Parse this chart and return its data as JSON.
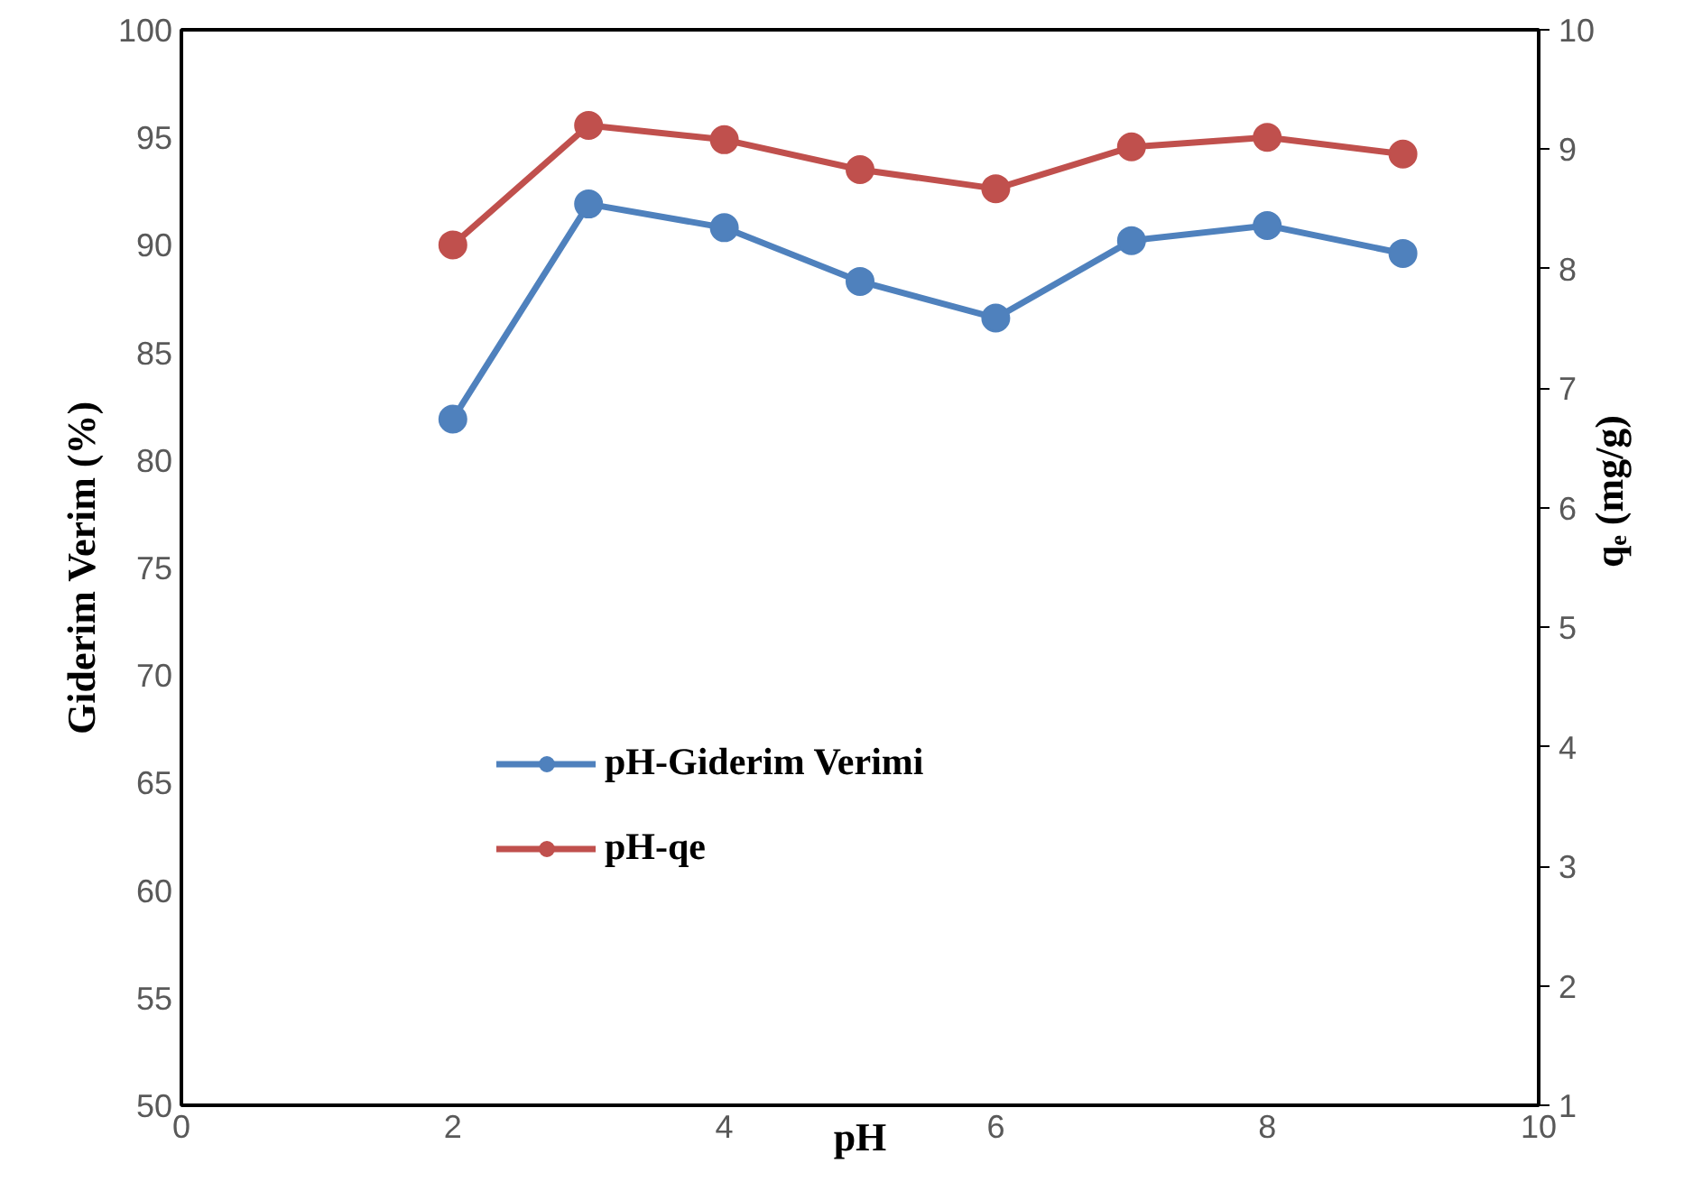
{
  "chart_data": {
    "type": "line",
    "xlabel": "pH",
    "ylabel": "Giderim Verim (%)",
    "y2label": "qₑ (mg/g)",
    "x": [
      2,
      3,
      4,
      5,
      6,
      7,
      8,
      9
    ],
    "series": [
      {
        "name": "pH-Giderim Verimi",
        "color": "#4f81bd",
        "values": [
          81.9,
          91.9,
          90.8,
          88.3,
          86.6,
          90.2,
          90.9,
          89.6
        ]
      },
      {
        "name": "pH-qe",
        "color": "#c0504d",
        "axis": "y2",
        "values": [
          8.2,
          9.2,
          9.08,
          8.83,
          8.67,
          9.02,
          9.1,
          8.96
        ]
      }
    ],
    "xlim": [
      0,
      10
    ],
    "xticks": [
      0,
      2,
      4,
      6,
      8,
      10
    ],
    "ylim": [
      50,
      100
    ],
    "yticks": [
      50,
      55,
      60,
      65,
      70,
      75,
      80,
      85,
      90,
      95,
      100
    ],
    "y2lim": [
      1,
      10
    ],
    "y2ticks": [
      1,
      2,
      3,
      4,
      5,
      6,
      7,
      8,
      9,
      10
    ],
    "grid": false,
    "legend": "left",
    "marker": "circle",
    "line_style": "solid"
  }
}
